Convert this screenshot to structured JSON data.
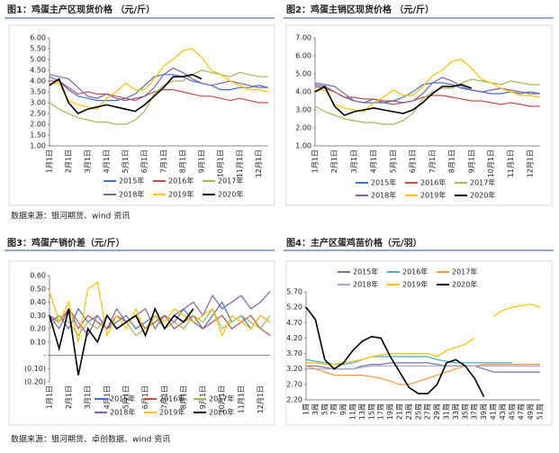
{
  "sources": [
    "数据来源：银河期货、wind 资讯",
    "数据来源：银河期货、卓创数据、wind 资讯"
  ],
  "chart_data": [
    {
      "type": "line",
      "title": "图1：鸡蛋主产区现货价格 （元/斤）",
      "categories": [
        "1月1日",
        null,
        "2月1日",
        null,
        "3月1日",
        null,
        "4月1日",
        null,
        "5月1日",
        null,
        "6月1日",
        null,
        "7月1日",
        null,
        "8月1日",
        null,
        "9月1日",
        null,
        "10月1日",
        null,
        "11月1日",
        null,
        "12月1日",
        null
      ],
      "ylim": [
        1,
        6
      ],
      "yticks": [
        {
          "value": 1,
          "label": "1.00"
        },
        {
          "value": 1.5,
          "label": "1.50"
        },
        {
          "value": 2,
          "label": "2.00"
        },
        {
          "value": 2.5,
          "label": "2.50"
        },
        {
          "value": 3,
          "label": "3.00"
        },
        {
          "value": 3.5,
          "label": "3.50"
        },
        {
          "value": 4,
          "label": "4.00"
        },
        {
          "value": 4.5,
          "label": "4.50"
        },
        {
          "value": 5,
          "label": "5.00"
        },
        {
          "value": 5.5,
          "label": "5.50"
        },
        {
          "value": 6,
          "label": "6.00"
        }
      ],
      "legend": "bottom",
      "series": [
        {
          "name": "2015年",
          "color": "#4472c4",
          "values": [
            4.2,
            4.0,
            3.6,
            3.3,
            3.2,
            3.1,
            3.1,
            3.1,
            3.2,
            3.4,
            3.8,
            4.2,
            4.3,
            4.3,
            4.2,
            4.0,
            3.9,
            3.8,
            3.6,
            3.6,
            3.7,
            3.7,
            3.8,
            3.7
          ]
        },
        {
          "name": "2016年",
          "color": "#c0504d",
          "values": [
            4.0,
            4.0,
            3.7,
            3.4,
            3.5,
            3.4,
            3.4,
            3.3,
            3.2,
            3.1,
            3.3,
            3.5,
            3.6,
            3.6,
            3.5,
            3.4,
            3.3,
            3.3,
            3.2,
            3.1,
            3.2,
            3.1,
            3.0,
            3.0
          ]
        },
        {
          "name": "2017年",
          "color": "#9bbb59",
          "values": [
            3.0,
            2.7,
            2.5,
            2.3,
            2.2,
            2.1,
            2.1,
            2.0,
            2.0,
            2.2,
            2.6,
            3.4,
            3.8,
            4.0,
            4.0,
            4.3,
            4.5,
            4.4,
            4.3,
            4.2,
            4.4,
            4.3,
            4.2,
            4.2
          ]
        },
        {
          "name": "2018年",
          "color": "#8064a2",
          "values": [
            4.3,
            4.2,
            4.1,
            3.7,
            3.3,
            3.2,
            3.4,
            3.2,
            3.1,
            3.2,
            3.3,
            3.7,
            4.3,
            4.6,
            4.4,
            4.1,
            3.9,
            3.8,
            3.9,
            4.0,
            3.9,
            3.8,
            3.7,
            3.7
          ]
        },
        {
          "name": "2019年",
          "color": "#ffc000",
          "values": [
            3.9,
            3.9,
            3.1,
            2.9,
            2.8,
            2.7,
            3.2,
            3.5,
            3.9,
            3.6,
            3.6,
            4.1,
            4.7,
            5.0,
            5.4,
            5.5,
            5.1,
            4.5,
            4.3,
            4.0,
            3.8,
            3.6,
            3.6,
            3.5
          ]
        },
        {
          "name": "2020年",
          "color": "#000000",
          "values": [
            3.8,
            4.1,
            3.0,
            2.5,
            2.7,
            2.8,
            2.9,
            2.8,
            2.7,
            2.6,
            2.9,
            3.3,
            3.7,
            4.2,
            4.2,
            4.3,
            4.1,
            null,
            null,
            null,
            null,
            null,
            null,
            null
          ]
        }
      ]
    },
    {
      "type": "line",
      "title": "图2：鸡蛋主销区现货价格 （元/斤）",
      "categories": [
        "1月1日",
        null,
        "2月1日",
        null,
        "3月1日",
        null,
        "4月1日",
        null,
        "5月1日",
        null,
        "6月1日",
        null,
        "7月1日",
        null,
        "8月1日",
        null,
        "9月1日",
        null,
        "10月1日",
        null,
        "11月1日",
        null,
        "12月1日",
        null
      ],
      "ylim": [
        1,
        7
      ],
      "yticks": [
        {
          "value": 1,
          "label": "1.00"
        },
        {
          "value": 2,
          "label": "2.00"
        },
        {
          "value": 3,
          "label": "3.00"
        },
        {
          "value": 4,
          "label": "4.00"
        },
        {
          "value": 5,
          "label": "5.00"
        },
        {
          "value": 6,
          "label": "6.00"
        },
        {
          "value": 7,
          "label": "7.00"
        }
      ],
      "legend": "bottom",
      "series": [
        {
          "name": "2015年",
          "color": "#4472c4",
          "values": [
            4.4,
            4.3,
            4.0,
            3.7,
            3.5,
            3.4,
            3.4,
            3.4,
            3.5,
            3.7,
            4.0,
            4.4,
            4.5,
            4.5,
            4.4,
            4.2,
            4.1,
            4.0,
            3.9,
            3.9,
            4.0,
            3.9,
            4.0,
            3.9
          ]
        },
        {
          "name": "2016年",
          "color": "#c0504d",
          "values": [
            4.3,
            4.2,
            4.0,
            3.7,
            3.7,
            3.6,
            3.6,
            3.5,
            3.5,
            3.4,
            3.5,
            3.7,
            3.8,
            3.8,
            3.7,
            3.6,
            3.5,
            3.5,
            3.4,
            3.3,
            3.4,
            3.3,
            3.2,
            3.2
          ]
        },
        {
          "name": "2017年",
          "color": "#9bbb59",
          "values": [
            3.2,
            2.9,
            2.7,
            2.5,
            2.4,
            2.3,
            2.3,
            2.2,
            2.2,
            2.4,
            2.8,
            3.6,
            4.0,
            4.2,
            4.2,
            4.5,
            4.7,
            4.6,
            4.5,
            4.4,
            4.6,
            4.5,
            4.4,
            4.4
          ]
        },
        {
          "name": "2018年",
          "color": "#8064a2",
          "values": [
            4.5,
            4.4,
            4.3,
            3.9,
            3.5,
            3.4,
            3.6,
            3.4,
            3.3,
            3.4,
            3.5,
            3.9,
            4.5,
            4.8,
            4.6,
            4.3,
            4.1,
            4.0,
            4.1,
            4.2,
            4.1,
            4.0,
            3.9,
            3.9
          ]
        },
        {
          "name": "2019年",
          "color": "#ffc000",
          "values": [
            4.1,
            4.1,
            3.3,
            3.1,
            3.0,
            2.9,
            3.4,
            3.7,
            4.1,
            3.8,
            3.8,
            4.3,
            4.9,
            5.2,
            5.7,
            5.8,
            5.3,
            4.7,
            4.5,
            4.2,
            4.0,
            3.8,
            3.8,
            3.7
          ]
        },
        {
          "name": "2020年",
          "color": "#000000",
          "values": [
            4.0,
            4.3,
            3.2,
            2.7,
            2.9,
            3.0,
            3.1,
            3.0,
            2.9,
            2.8,
            3.0,
            3.4,
            3.9,
            4.3,
            4.3,
            4.4,
            4.2,
            null,
            null,
            null,
            null,
            null,
            null,
            null
          ]
        }
      ]
    },
    {
      "type": "line",
      "title": "图3：鸡蛋产销价差（元/斤）",
      "categories": [
        "1月1日",
        null,
        "2月1日",
        null,
        "3月1日",
        null,
        "4月1日",
        null,
        "5月1日",
        null,
        "6月1日",
        null,
        "7月1日",
        null,
        "8月1日",
        null,
        "9月1日",
        null,
        "10月1日",
        null,
        "11月1日",
        null,
        "12月1日",
        null
      ],
      "ylim": [
        -0.2,
        0.6
      ],
      "yticks": [
        {
          "value": -0.2,
          "label": "(0.20)"
        },
        {
          "value": -0.1,
          "label": "(0.10)"
        },
        {
          "value": 0,
          "label": "-"
        },
        {
          "value": 0.1,
          "label": "0.10"
        },
        {
          "value": 0.2,
          "label": "0.20"
        },
        {
          "value": 0.3,
          "label": "0.30"
        },
        {
          "value": 0.4,
          "label": "0.40"
        },
        {
          "value": 0.5,
          "label": "0.50"
        },
        {
          "value": 0.6,
          "label": "0.60"
        }
      ],
      "negative_tick_color": "#c00000",
      "legend": "bottom",
      "series": [
        {
          "name": "2015年",
          "color": "#4472c4",
          "values": [
            0.25,
            0.3,
            0.2,
            0.35,
            0.25,
            0.3,
            0.2,
            0.25,
            0.3,
            0.2,
            0.25,
            0.3,
            0.2,
            0.3,
            0.35,
            0.25,
            0.2,
            0.3,
            0.4,
            0.25,
            0.3,
            0.2,
            0.3,
            0.25
          ]
        },
        {
          "name": "2016年",
          "color": "#c0504d",
          "values": [
            0.3,
            0.25,
            0.35,
            0.2,
            0.3,
            0.25,
            0.2,
            0.3,
            0.25,
            0.3,
            0.2,
            0.25,
            0.3,
            0.2,
            0.25,
            0.3,
            0.2,
            0.25,
            0.3,
            0.2,
            0.25,
            0.3,
            0.2,
            0.15
          ]
        },
        {
          "name": "2017年",
          "color": "#9bbb59",
          "values": [
            0.2,
            0.3,
            0.25,
            0.15,
            0.25,
            0.2,
            0.3,
            0.2,
            0.25,
            0.15,
            0.2,
            0.3,
            0.2,
            0.25,
            0.2,
            0.3,
            0.25,
            0.35,
            0.2,
            0.25,
            0.3,
            0.25,
            0.2,
            0.3
          ]
        },
        {
          "name": "2018年",
          "color": "#8064a2",
          "values": [
            0.3,
            0.2,
            0.35,
            0.25,
            0.15,
            0.3,
            0.2,
            0.35,
            0.25,
            0.3,
            0.35,
            0.2,
            0.3,
            0.25,
            0.35,
            0.4,
            0.3,
            0.45,
            0.35,
            0.4,
            0.45,
            0.35,
            0.4,
            0.48
          ]
        },
        {
          "name": "2019年",
          "color": "#ffc000",
          "values": [
            0.48,
            0.25,
            0.4,
            0.1,
            0.5,
            0.55,
            0.15,
            0.3,
            0.2,
            0.35,
            0.15,
            0.3,
            0.25,
            0.35,
            0.3,
            0.25,
            0.3,
            0.35,
            0.15,
            0.3,
            0.25,
            0.2,
            0.3,
            0.25
          ]
        },
        {
          "name": "2020年",
          "color": "#000000",
          "values": [
            0.3,
            0.05,
            0.35,
            -0.15,
            0.2,
            0.1,
            0.3,
            0.2,
            0.25,
            0.3,
            0.15,
            0.35,
            0.2,
            0.3,
            0.25,
            0.35,
            null,
            null,
            null,
            null,
            null,
            null,
            null,
            null
          ]
        }
      ]
    },
    {
      "type": "line",
      "title": "图4：主产区蛋鸡苗价格（元/羽）",
      "categories": [
        "1周",
        "3周",
        "5周",
        "7周",
        "9周",
        "11周",
        "13周",
        "15周",
        "17周",
        "19周",
        "21周",
        "23周",
        "25周",
        "27周",
        "29周",
        "31周",
        "33周",
        "35周",
        "37周",
        "39周",
        "41周",
        "43周",
        "45周",
        "47周",
        "49周",
        "51周"
      ],
      "ylim": [
        2.2,
        5.7
      ],
      "yticks": [
        {
          "value": 2.2,
          "label": "2.20"
        },
        {
          "value": 2.7,
          "label": "2.70"
        },
        {
          "value": 3.2,
          "label": "3.20"
        },
        {
          "value": 3.7,
          "label": "3.70"
        },
        {
          "value": 4.2,
          "label": "4.20"
        },
        {
          "value": 4.7,
          "label": "4.70"
        },
        {
          "value": 5.2,
          "label": "5.20"
        },
        {
          "value": 5.7,
          "label": "5.70"
        }
      ],
      "legend": "top",
      "series": [
        {
          "name": "2015年",
          "color": "#7f6fa8",
          "values": [
            3.3,
            3.3,
            3.25,
            3.2,
            3.2,
            3.2,
            3.3,
            3.35,
            3.35,
            3.4,
            3.4,
            3.4,
            3.4,
            3.4,
            3.35,
            3.3,
            3.3,
            3.3,
            3.3,
            3.2,
            3.1,
            3.1,
            3.1,
            3.1,
            3.1,
            3.1
          ]
        },
        {
          "name": "2016年",
          "color": "#4bacc6",
          "values": [
            3.5,
            3.45,
            3.4,
            3.35,
            3.35,
            3.4,
            3.5,
            3.6,
            3.6,
            3.6,
            3.6,
            3.6,
            3.6,
            3.6,
            3.5,
            3.45,
            3.4,
            3.4,
            3.4,
            3.4,
            3.4,
            3.4,
            3.4,
            null,
            null,
            null
          ]
        },
        {
          "name": "2017年",
          "color": "#f79646",
          "values": [
            3.3,
            3.2,
            3.1,
            3.0,
            3.0,
            3.0,
            3.0,
            2.95,
            2.9,
            2.8,
            2.7,
            2.7,
            2.8,
            2.9,
            3.0,
            3.1,
            3.2,
            3.3,
            3.3,
            3.35,
            3.35,
            3.35,
            3.35,
            3.35,
            3.35,
            3.35
          ]
        },
        {
          "name": "2018年",
          "color": "#a5a5c8",
          "values": [
            3.2,
            3.2,
            3.2,
            3.2,
            3.2,
            3.2,
            3.25,
            3.3,
            3.3,
            3.3,
            3.3,
            3.3,
            3.3,
            3.3,
            3.3,
            3.3,
            3.3,
            3.3,
            3.3,
            3.3,
            3.3,
            3.3,
            3.3,
            3.3,
            3.3,
            3.3
          ]
        },
        {
          "name": "2019年",
          "color": "#ffc000",
          "values": [
            3.4,
            3.4,
            3.35,
            3.35,
            3.4,
            3.45,
            3.5,
            3.6,
            3.65,
            3.7,
            3.7,
            3.7,
            3.7,
            3.7,
            3.6,
            3.8,
            3.9,
            4.0,
            4.2,
            null,
            4.9,
            5.1,
            5.2,
            5.25,
            5.3,
            5.2
          ]
        },
        {
          "name": "2020年",
          "color": "#000000",
          "values": [
            5.2,
            4.8,
            3.5,
            3.2,
            3.4,
            3.8,
            4.1,
            4.25,
            4.2,
            3.6,
            3.1,
            2.6,
            2.4,
            2.4,
            2.7,
            3.4,
            3.5,
            3.3,
            2.9,
            2.3,
            null,
            null,
            null,
            null,
            null,
            null
          ]
        }
      ]
    }
  ]
}
